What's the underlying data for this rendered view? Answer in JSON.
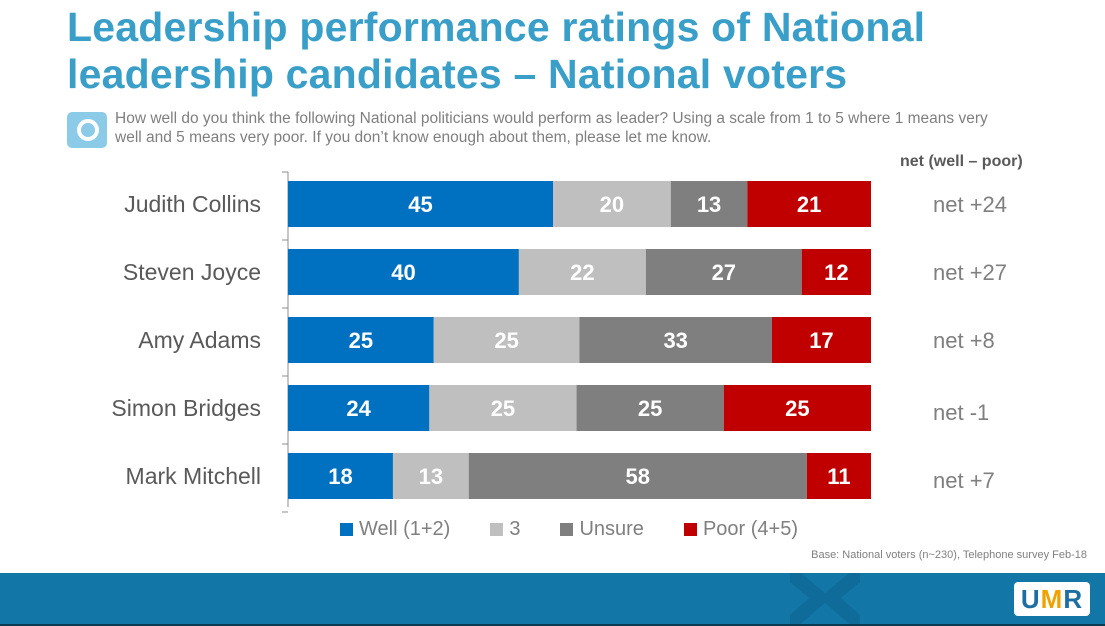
{
  "title_line1": "Leadership performance ratings of National",
  "title_line2": "leadership candidates – National voters",
  "question_icon": "question-icon",
  "question_text": "How well do you think the following National politicians would perform as leader?  Using a scale from 1 to 5 where 1 means very well and 5 means very poor.  If you don’t know enough about them, please let me know.",
  "net_header": "net (well – poor)",
  "base_note": "Base: National voters (n~230),  Telephone survey Feb-18",
  "logo": {
    "u": "U",
    "m": "M",
    "r": "R"
  },
  "colors": {
    "well": "#0070c0",
    "three": "#bfbfbf",
    "unsure": "#7f7f7f",
    "poor": "#c00000",
    "brand": "#3a9fc8"
  },
  "chart_data": {
    "type": "bar",
    "orientation": "horizontal",
    "stacked": true,
    "categories": [
      "Judith Collins",
      "Steven Joyce",
      "Amy Adams",
      "Simon Bridges",
      "Mark Mitchell"
    ],
    "series": [
      {
        "name": "Well (1+2)",
        "values": [
          45,
          40,
          25,
          24,
          18
        ]
      },
      {
        "name": "3",
        "values": [
          20,
          22,
          25,
          25,
          13
        ]
      },
      {
        "name": "Unsure",
        "values": [
          13,
          27,
          33,
          25,
          58
        ]
      },
      {
        "name": "Poor (4+5)",
        "values": [
          21,
          12,
          17,
          25,
          11
        ]
      }
    ],
    "net_labels": [
      "net +24",
      "net +27",
      "net +8",
      "net -1",
      "net +7"
    ],
    "legend_position": "bottom",
    "grid": false,
    "title": "Leadership performance ratings of National leadership candidates – National voters"
  }
}
